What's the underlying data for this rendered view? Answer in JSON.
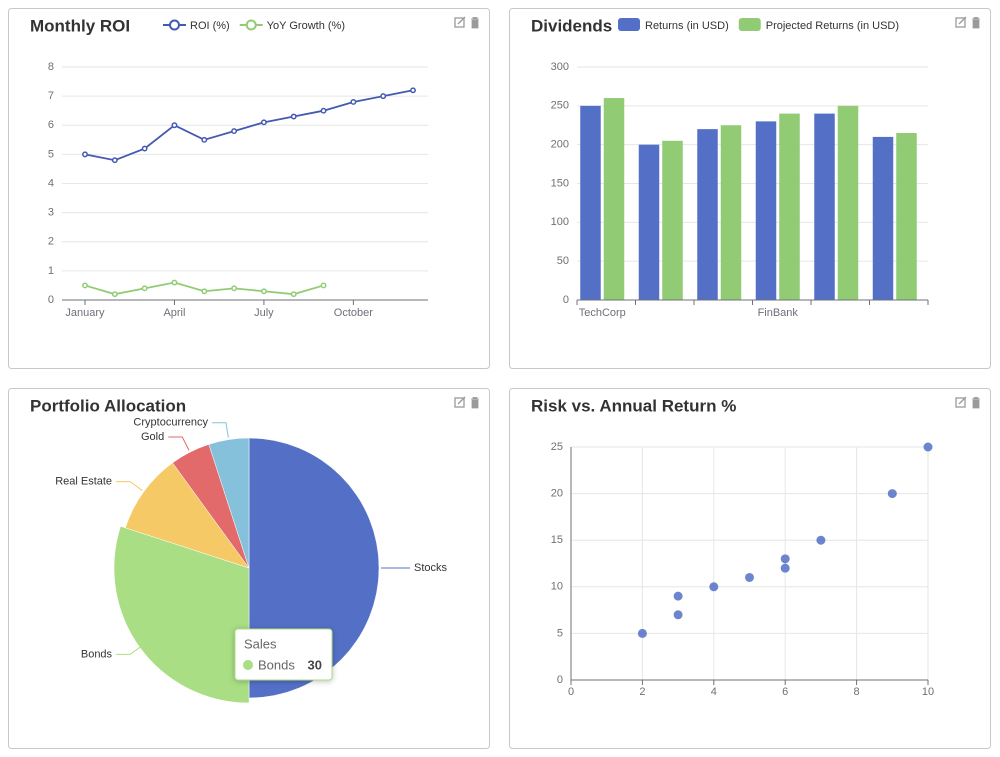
{
  "chart_data": [
    {
      "type": "line",
      "title": "Monthly ROI",
      "categories": [
        "January",
        null,
        null,
        "April",
        null,
        null,
        "July",
        null,
        null,
        "October",
        null,
        null
      ],
      "series": [
        {
          "name": "ROI (%)",
          "color": "#4459b0",
          "values": [
            5,
            4.8,
            5.2,
            6,
            5.5,
            5.8,
            6.1,
            6.3,
            6.5,
            6.8,
            7,
            7.2
          ]
        },
        {
          "name": "YoY Growth (%)",
          "color": "#91cc75",
          "values": [
            0.5,
            0.2,
            0.4,
            0.6,
            0.3,
            0.4,
            0.3,
            0.2,
            0.5,
            null,
            null,
            null
          ]
        }
      ],
      "ylim": [
        0,
        8
      ],
      "yticks": [
        0,
        1,
        2,
        3,
        4,
        5,
        6,
        7,
        8
      ],
      "grid": true
    },
    {
      "type": "bar",
      "title": "Dividends",
      "categories": [
        "TechCorp",
        null,
        null,
        "FinBank",
        null,
        null
      ],
      "series": [
        {
          "name": "Returns (in USD)",
          "color": "#5470c6",
          "values": [
            250,
            200,
            220,
            230,
            240,
            210
          ]
        },
        {
          "name": "Projected Returns (in USD)",
          "color": "#91cc75",
          "values": [
            260,
            205,
            225,
            240,
            250,
            215
          ]
        }
      ],
      "ylim": [
        0,
        300
      ],
      "yticks": [
        0,
        50,
        100,
        150,
        200,
        250,
        300
      ],
      "grid": true
    },
    {
      "type": "pie",
      "title": "Portfolio Allocation",
      "series_name": "Sales",
      "categories": [
        "Stocks",
        "Bonds",
        "Real Estate",
        "Gold",
        "Cryptocurrency"
      ],
      "values": [
        50,
        30,
        10,
        5,
        5
      ],
      "colors": [
        "#5470c6",
        "#a9de85",
        "#f5c965",
        "#e36a6a",
        "#86c1dc"
      ],
      "highlighted": 1
    },
    {
      "type": "scatter",
      "title": "Risk vs. Annual Return %",
      "x": [
        2,
        3,
        3,
        4,
        5,
        6,
        6,
        7,
        9,
        10
      ],
      "values": [
        5,
        7,
        9,
        10,
        11,
        12,
        13,
        15,
        20,
        25
      ],
      "color": "#5470c6",
      "xlim": [
        0,
        10
      ],
      "xticks": [
        0,
        2,
        4,
        6,
        8,
        10
      ],
      "ylim": [
        0,
        25
      ],
      "yticks": [
        0,
        5,
        10,
        15,
        20,
        25
      ],
      "grid": true
    }
  ]
}
